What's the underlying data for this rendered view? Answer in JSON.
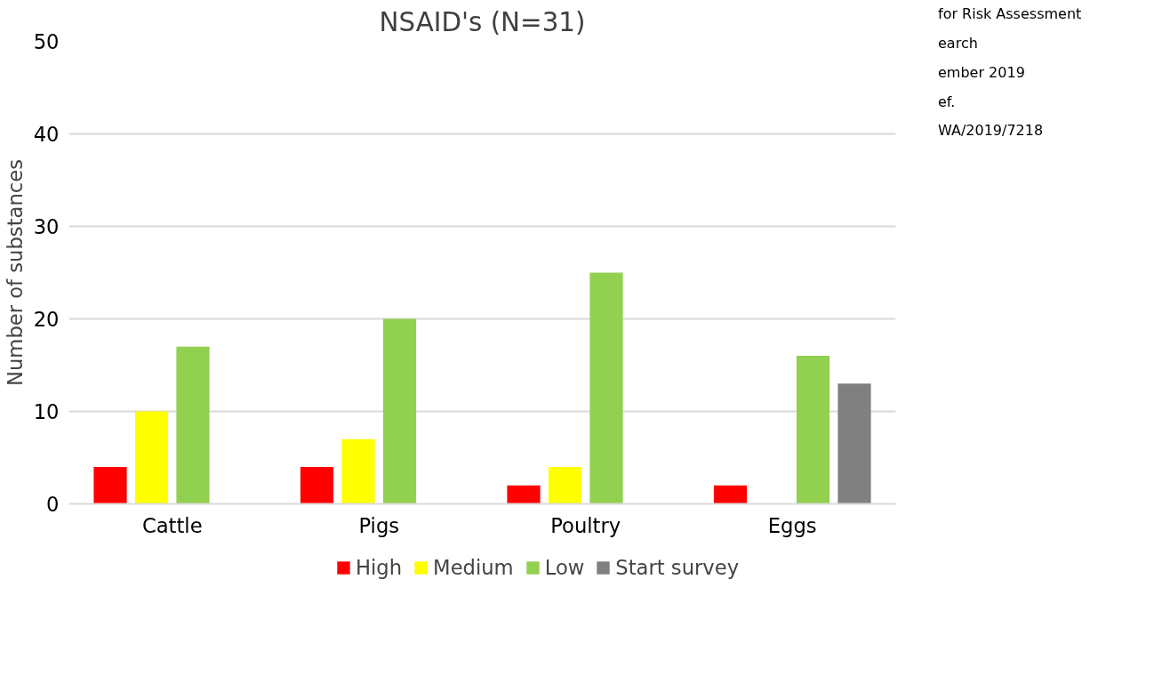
{
  "chart_data": {
    "type": "bar",
    "title": "NSAID's (N=31)",
    "ylabel": "Number of substances",
    "categories": [
      "Cattle",
      "Pigs",
      "Poultry",
      "Eggs"
    ],
    "series": [
      {
        "name": "High",
        "color": "#ff0000",
        "values": [
          4,
          4,
          2,
          2
        ]
      },
      {
        "name": "Medium",
        "color": "#ffff00",
        "values": [
          10,
          7,
          4,
          null
        ]
      },
      {
        "name": "Low",
        "color": "#92d050",
        "values": [
          17,
          20,
          25,
          16
        ]
      },
      {
        "name": "Start survey",
        "color": "#808080",
        "values": [
          null,
          null,
          null,
          13
        ]
      }
    ],
    "ylim": [
      0,
      50
    ],
    "yticks": [
      0,
      10,
      20,
      30,
      40,
      50
    ],
    "grid": "y",
    "legend": "bottom",
    "annotations": [
      "for Risk Assessment",
      "earch",
      "ember 2019",
      "ef.",
      "WA/2019/7218"
    ]
  }
}
